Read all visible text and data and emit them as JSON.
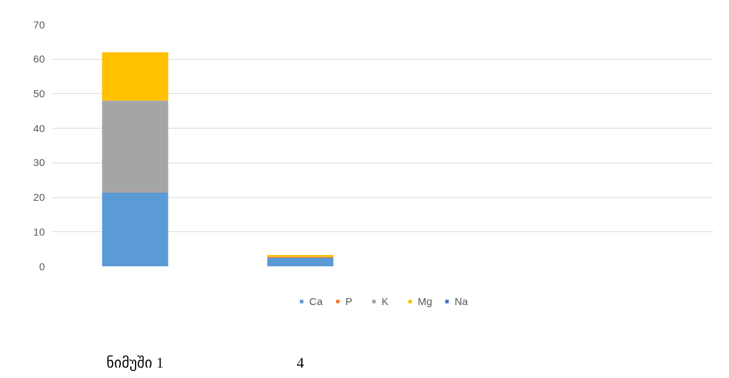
{
  "chart_data": {
    "type": "bar",
    "stacked": true,
    "categories": [
      "ნიმუში 1",
      "4",
      null,
      null
    ],
    "series": [
      {
        "name": "Ca",
        "color": "#5b9bd5",
        "values": [
          21.5,
          2.5,
          0,
          0
        ]
      },
      {
        "name": "P",
        "color": "#ed7d31",
        "values": [
          0.1,
          0.3,
          0,
          0
        ]
      },
      {
        "name": "K",
        "color": "#a5a5a5",
        "values": [
          26.4,
          0,
          0,
          0
        ]
      },
      {
        "name": "Mg",
        "color": "#ffc000",
        "values": [
          14,
          0.5,
          0,
          0
        ]
      },
      {
        "name": "Na",
        "color": "#4472c4",
        "values": [
          0,
          0,
          0,
          0
        ]
      }
    ],
    "ylim": [
      0,
      70
    ],
    "yticks": [
      0,
      10,
      20,
      30,
      40,
      50,
      60,
      70
    ],
    "grid": "y",
    "legend": "bottom"
  }
}
